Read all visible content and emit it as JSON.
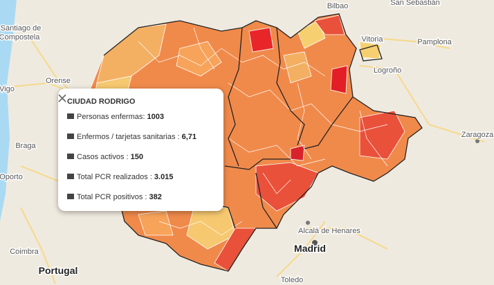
{
  "map_labels": [
    "Bilbao",
    "San Sebastián",
    "Vitoria",
    "Pamplona",
    "Logroño",
    "Zaragoza",
    "Santiago de",
    "Compostela",
    "Orense",
    "Vigo",
    "Braga",
    "Oporto",
    "Portugal",
    "Coimbra",
    "Madrid",
    "Alcalá de Henares",
    "Toledo"
  ],
  "popup": {
    "title": "CIUDAD RODRIGO",
    "rows": [
      {
        "label": "Personas enfermas:",
        "value": "1003"
      },
      {
        "label": "Enfermos / tarjetas sanitarias :",
        "value": "6,71"
      },
      {
        "label": "Casos activos :",
        "value": "150"
      },
      {
        "label": "Total PCR realizados :",
        "value": "3.015"
      },
      {
        "label": "Total PCR positivos :",
        "value": "382"
      }
    ]
  }
}
